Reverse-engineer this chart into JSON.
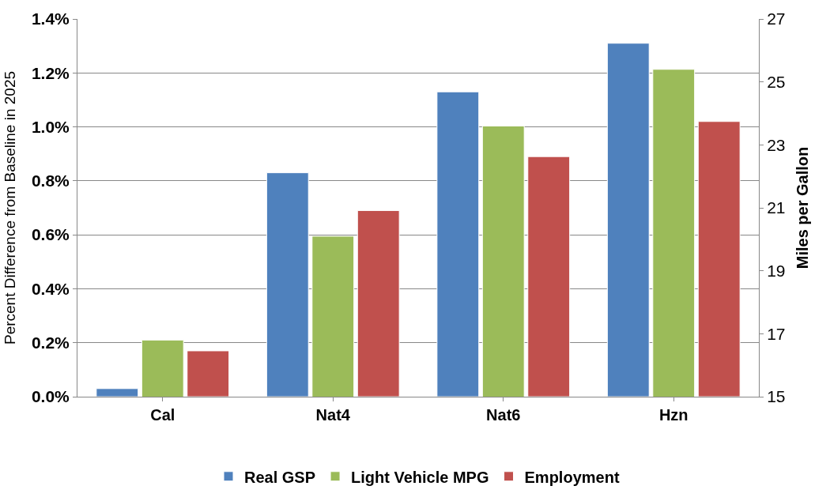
{
  "chart_data": {
    "type": "bar",
    "categories": [
      "Cal",
      "Nat4",
      "Nat6",
      "Hzn"
    ],
    "ylabel": "Percent Difference from Baseline in 2025",
    "y2label": "Miles per Gallon",
    "series": [
      {
        "name": "Real GSP",
        "color": "#4f81bd",
        "values": [
          0.03,
          0.83,
          1.13,
          1.31
        ]
      },
      {
        "name": "Light Vehicle MPG",
        "color": "#9bbb59",
        "axis": "y2",
        "values": [
          16.8,
          20.1,
          23.6,
          25.4
        ]
      },
      {
        "name": "Employment",
        "color": "#c0504d",
        "values": [
          0.17,
          0.69,
          0.89,
          1.02
        ]
      }
    ],
    "ylim": [
      0,
      1.4
    ],
    "yticks": [
      {
        "value": 0,
        "label": "0.0%"
      },
      {
        "value": 0.2,
        "label": "0.2%"
      },
      {
        "value": 0.4,
        "label": "0.4%"
      },
      {
        "value": 0.6,
        "label": "0.6%"
      },
      {
        "value": 0.8,
        "label": "0.8%"
      },
      {
        "value": 1.0,
        "label": "1.0%"
      },
      {
        "value": 1.2,
        "label": "1.2%"
      },
      {
        "value": 1.4,
        "label": "1.4%"
      }
    ],
    "y2lim": [
      15,
      27
    ],
    "y2ticks": [
      15,
      17,
      19,
      21,
      23,
      25,
      27
    ],
    "grid": "y",
    "legend": "bottom"
  }
}
